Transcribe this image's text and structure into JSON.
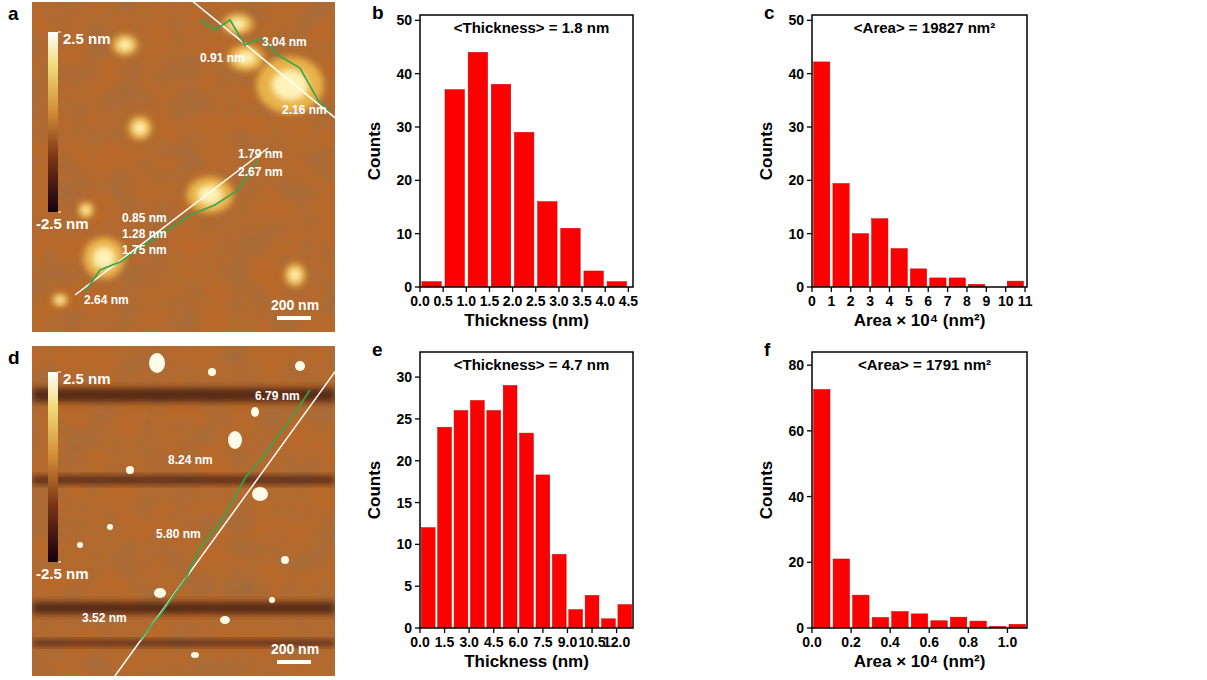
{
  "chart_data": [
    {
      "type": "image",
      "panel_label": "a",
      "colorbar_range": [
        -2.5,
        2.5
      ],
      "colorbar_ticks": [
        {
          "value": 2.5,
          "label": "2.5 nm"
        },
        {
          "value": -2.5,
          "label": "-2.5 nm"
        }
      ],
      "scale_bar": "200 nm",
      "annotations": [
        "0.91 nm",
        "3.04 nm",
        "2.16 nm",
        "1.79 nm",
        "2.67 nm",
        "0.85 nm",
        "1.28 nm",
        "1.75 nm",
        "2.64 nm"
      ]
    },
    {
      "type": "histogram",
      "panel_label": "b",
      "title": "<Thickness> = 1.8 nm",
      "x_label": "Thickness (nm)",
      "y_label": "Counts",
      "color": "#ff0000",
      "bins": [
        0,
        0.5,
        1,
        1.5,
        2,
        2.5,
        3,
        3.5,
        4,
        4.5
      ],
      "values": [
        1,
        37,
        44,
        38,
        29,
        16,
        11,
        3,
        1
      ],
      "xlim": [
        0,
        4.6
      ],
      "ylim": [
        0,
        51
      ],
      "xticks": [
        {
          "value": 0,
          "label": "0.0"
        },
        0.5,
        {
          "value": 1,
          "label": "1.0"
        },
        1.5,
        {
          "value": 2,
          "label": "2.0"
        },
        2.5,
        {
          "value": 3,
          "label": "3.0"
        },
        3.5,
        {
          "value": 4,
          "label": "4.0"
        },
        4.5
      ],
      "yticks": [
        0,
        10,
        20,
        30,
        40,
        50
      ]
    },
    {
      "type": "histogram",
      "panel_label": "c",
      "title": "<Area> = 19827 nm²",
      "x_label": "Area × 10⁴ (nm²)",
      "y_label": "Counts",
      "color": "#ff0000",
      "bins": [
        0,
        1,
        2,
        3,
        4,
        5,
        6,
        7,
        8,
        9,
        10,
        11
      ],
      "values": [
        42.2,
        19.4,
        10,
        12.8,
        7.2,
        3.4,
        1.7,
        1.7,
        0.5,
        0,
        1.1
      ],
      "xlim": [
        0,
        11.1
      ],
      "ylim": [
        0,
        51
      ],
      "xticks": [
        0,
        1,
        2,
        3,
        4,
        5,
        6,
        7,
        8,
        9,
        10,
        11
      ],
      "yticks": [
        0,
        10,
        20,
        30,
        40,
        50
      ]
    },
    {
      "type": "image",
      "panel_label": "d",
      "colorbar_range": [
        -2.5,
        2.5
      ],
      "colorbar_ticks": [
        {
          "value": 2.5,
          "label": "2.5 nm"
        },
        {
          "value": -2.5,
          "label": "-2.5 nm"
        }
      ],
      "scale_bar": "200 nm",
      "annotations": [
        "6.79 nm",
        "8.24 nm",
        "5.80 nm",
        "3.52 nm"
      ]
    },
    {
      "type": "histogram",
      "panel_label": "e",
      "title": "<Thickness> = 4.7 nm",
      "x_label": "Thickness (nm)",
      "y_label": "Counts",
      "color": "#ff0000",
      "bins": [
        0,
        1,
        2,
        3,
        4,
        5,
        6,
        7,
        8,
        9,
        10,
        11,
        12,
        13
      ],
      "values": [
        12,
        24,
        26,
        27.2,
        26,
        29,
        23.3,
        18.3,
        8.8,
        2.2,
        3.9,
        1.1,
        2.8
      ],
      "xlim": [
        0,
        13
      ],
      "ylim": [
        0,
        33
      ],
      "xticks": [
        {
          "value": 0,
          "label": "0.0"
        },
        1.5,
        {
          "value": 3,
          "label": "3.0"
        },
        4.5,
        {
          "value": 6,
          "label": "6.0"
        },
        7.5,
        {
          "value": 9,
          "label": "9.0"
        },
        10.5,
        {
          "value": 12,
          "label": "12.0"
        }
      ],
      "yticks": [
        0,
        5,
        10,
        15,
        20,
        25,
        30
      ]
    },
    {
      "type": "histogram",
      "panel_label": "f",
      "title": "<Area> = 1791 nm²",
      "x_label": "Area × 10⁴ (nm²)",
      "y_label": "Counts",
      "color": "#ff0000",
      "bins": [
        0,
        0.1,
        0.2,
        0.3,
        0.4,
        0.5,
        0.6,
        0.7,
        0.8,
        0.9,
        1.0,
        1.1
      ],
      "values": [
        72.6,
        21,
        10,
        3.2,
        5,
        4.3,
        2.2,
        3.3,
        2.1,
        0.5,
        1.1
      ],
      "xlim": [
        0,
        1.1
      ],
      "ylim": [
        0,
        84
      ],
      "xticks": [
        {
          "value": 0,
          "label": "0.0"
        },
        0.2,
        0.4,
        0.6,
        0.8,
        {
          "value": 1,
          "label": "1.0"
        }
      ],
      "yticks": [
        0,
        20,
        40,
        60,
        80
      ]
    }
  ]
}
